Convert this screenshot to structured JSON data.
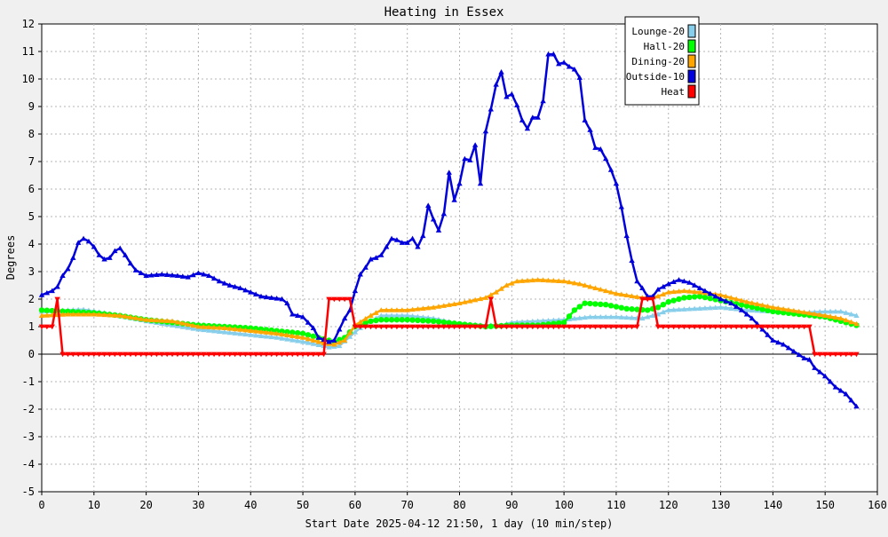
{
  "chart_data": {
    "type": "line",
    "title": "Heating in Essex",
    "xlabel": "Start Date 2025-04-12 21:50, 1 day (10 min/step)",
    "ylabel": "Degrees",
    "xlim": [
      0,
      160
    ],
    "ylim": [
      -5,
      12
    ],
    "x_ticks": [
      0,
      10,
      20,
      30,
      40,
      50,
      60,
      70,
      80,
      90,
      100,
      110,
      120,
      130,
      140,
      150,
      160
    ],
    "y_ticks": [
      -5,
      -4,
      -3,
      -2,
      -1,
      0,
      1,
      2,
      3,
      4,
      5,
      6,
      7,
      8,
      9,
      10,
      11,
      12
    ],
    "grid": true,
    "legend_position": "top-right",
    "background_color": "#ffffff",
    "frame_color": "#f0f0f0",
    "series": [
      {
        "name": "Lounge-20",
        "color": "#87ceeb",
        "marker": "triangle-up",
        "points": [
          [
            0,
            1.55
          ],
          [
            5,
            1.6
          ],
          [
            8,
            1.62
          ],
          [
            12,
            1.5
          ],
          [
            16,
            1.35
          ],
          [
            20,
            1.2
          ],
          [
            25,
            1.05
          ],
          [
            30,
            0.9
          ],
          [
            35,
            0.8
          ],
          [
            40,
            0.7
          ],
          [
            45,
            0.6
          ],
          [
            50,
            0.45
          ],
          [
            54,
            0.3
          ],
          [
            55,
            0.25
          ],
          [
            57,
            0.3
          ],
          [
            60,
            0.8
          ],
          [
            62,
            1.1
          ],
          [
            65,
            1.4
          ],
          [
            70,
            1.4
          ],
          [
            75,
            1.3
          ],
          [
            80,
            1.1
          ],
          [
            85,
            1.05
          ],
          [
            88,
            1.05
          ],
          [
            90,
            1.15
          ],
          [
            95,
            1.2
          ],
          [
            100,
            1.25
          ],
          [
            105,
            1.35
          ],
          [
            110,
            1.35
          ],
          [
            115,
            1.3
          ],
          [
            118,
            1.45
          ],
          [
            120,
            1.6
          ],
          [
            125,
            1.65
          ],
          [
            130,
            1.7
          ],
          [
            135,
            1.6
          ],
          [
            140,
            1.55
          ],
          [
            145,
            1.5
          ],
          [
            150,
            1.55
          ],
          [
            153,
            1.55
          ],
          [
            156,
            1.4
          ]
        ]
      },
      {
        "name": "Hall-20",
        "color": "#00ff00",
        "marker": "circle",
        "points": [
          [
            0,
            1.6
          ],
          [
            5,
            1.55
          ],
          [
            10,
            1.5
          ],
          [
            15,
            1.4
          ],
          [
            20,
            1.25
          ],
          [
            25,
            1.15
          ],
          [
            30,
            1.05
          ],
          [
            35,
            1.0
          ],
          [
            40,
            0.95
          ],
          [
            45,
            0.85
          ],
          [
            50,
            0.75
          ],
          [
            54,
            0.55
          ],
          [
            56,
            0.45
          ],
          [
            58,
            0.6
          ],
          [
            60,
            1.0
          ],
          [
            63,
            1.2
          ],
          [
            65,
            1.25
          ],
          [
            70,
            1.25
          ],
          [
            75,
            1.2
          ],
          [
            80,
            1.1
          ],
          [
            85,
            1.0
          ],
          [
            90,
            1.05
          ],
          [
            95,
            1.05
          ],
          [
            100,
            1.15
          ],
          [
            102,
            1.6
          ],
          [
            104,
            1.85
          ],
          [
            108,
            1.8
          ],
          [
            112,
            1.65
          ],
          [
            116,
            1.6
          ],
          [
            118,
            1.7
          ],
          [
            120,
            1.9
          ],
          [
            123,
            2.05
          ],
          [
            126,
            2.1
          ],
          [
            130,
            1.95
          ],
          [
            135,
            1.75
          ],
          [
            140,
            1.55
          ],
          [
            145,
            1.45
          ],
          [
            150,
            1.35
          ],
          [
            153,
            1.2
          ],
          [
            156,
            1.05
          ]
        ]
      },
      {
        "name": "Dining-20",
        "color": "#ffa500",
        "marker": "triangle-up",
        "points": [
          [
            0,
            1.4
          ],
          [
            5,
            1.45
          ],
          [
            10,
            1.45
          ],
          [
            15,
            1.4
          ],
          [
            20,
            1.25
          ],
          [
            25,
            1.2
          ],
          [
            30,
            1.0
          ],
          [
            35,
            0.95
          ],
          [
            40,
            0.85
          ],
          [
            45,
            0.75
          ],
          [
            50,
            0.6
          ],
          [
            54,
            0.4
          ],
          [
            56,
            0.35
          ],
          [
            58,
            0.5
          ],
          [
            60,
            1.05
          ],
          [
            63,
            1.4
          ],
          [
            65,
            1.6
          ],
          [
            70,
            1.6
          ],
          [
            75,
            1.7
          ],
          [
            80,
            1.85
          ],
          [
            85,
            2.05
          ],
          [
            87,
            2.25
          ],
          [
            89,
            2.5
          ],
          [
            91,
            2.65
          ],
          [
            95,
            2.7
          ],
          [
            100,
            2.65
          ],
          [
            103,
            2.55
          ],
          [
            105,
            2.45
          ],
          [
            110,
            2.2
          ],
          [
            115,
            2.05
          ],
          [
            118,
            2.1
          ],
          [
            120,
            2.25
          ],
          [
            123,
            2.3
          ],
          [
            126,
            2.25
          ],
          [
            130,
            2.15
          ],
          [
            135,
            1.9
          ],
          [
            140,
            1.7
          ],
          [
            145,
            1.55
          ],
          [
            150,
            1.4
          ],
          [
            153,
            1.3
          ],
          [
            156,
            1.1
          ]
        ]
      },
      {
        "name": "Outside-10",
        "color": "#0000dd",
        "marker": "triangle-up",
        "points": [
          [
            0,
            2.15
          ],
          [
            2,
            2.3
          ],
          [
            3,
            2.45
          ],
          [
            4,
            2.85
          ],
          [
            5,
            3.1
          ],
          [
            6,
            3.5
          ],
          [
            7,
            4.05
          ],
          [
            8,
            4.2
          ],
          [
            9,
            4.1
          ],
          [
            10,
            3.9
          ],
          [
            11,
            3.6
          ],
          [
            12,
            3.45
          ],
          [
            13,
            3.5
          ],
          [
            14,
            3.75
          ],
          [
            15,
            3.85
          ],
          [
            16,
            3.6
          ],
          [
            17,
            3.3
          ],
          [
            18,
            3.05
          ],
          [
            20,
            2.85
          ],
          [
            23,
            2.9
          ],
          [
            26,
            2.85
          ],
          [
            28,
            2.8
          ],
          [
            30,
            2.95
          ],
          [
            32,
            2.85
          ],
          [
            34,
            2.65
          ],
          [
            36,
            2.5
          ],
          [
            38,
            2.4
          ],
          [
            40,
            2.25
          ],
          [
            42,
            2.1
          ],
          [
            44,
            2.05
          ],
          [
            46,
            2.0
          ],
          [
            47,
            1.85
          ],
          [
            48,
            1.45
          ],
          [
            50,
            1.35
          ],
          [
            52,
            0.95
          ],
          [
            53,
            0.6
          ],
          [
            55,
            0.45
          ],
          [
            56,
            0.5
          ],
          [
            58,
            1.3
          ],
          [
            59,
            1.6
          ],
          [
            60,
            2.3
          ],
          [
            61,
            2.9
          ],
          [
            62,
            3.15
          ],
          [
            63,
            3.45
          ],
          [
            64,
            3.5
          ],
          [
            65,
            3.6
          ],
          [
            66,
            3.9
          ],
          [
            67,
            4.2
          ],
          [
            68,
            4.15
          ],
          [
            69,
            4.05
          ],
          [
            70,
            4.05
          ],
          [
            71,
            4.2
          ],
          [
            72,
            3.9
          ],
          [
            73,
            4.3
          ],
          [
            74,
            5.4
          ],
          [
            75,
            4.9
          ],
          [
            76,
            4.5
          ],
          [
            77,
            5.1
          ],
          [
            78,
            6.6
          ],
          [
            79,
            5.6
          ],
          [
            80,
            6.2
          ],
          [
            81,
            7.1
          ],
          [
            82,
            7.05
          ],
          [
            83,
            7.6
          ],
          [
            84,
            6.2
          ],
          [
            85,
            8.1
          ],
          [
            86,
            8.9
          ],
          [
            87,
            9.8
          ],
          [
            88,
            10.25
          ],
          [
            89,
            9.35
          ],
          [
            90,
            9.45
          ],
          [
            91,
            9.05
          ],
          [
            92,
            8.5
          ],
          [
            93,
            8.2
          ],
          [
            94,
            8.6
          ],
          [
            95,
            8.6
          ],
          [
            96,
            9.2
          ],
          [
            97,
            10.9
          ],
          [
            98,
            10.9
          ],
          [
            99,
            10.55
          ],
          [
            100,
            10.6
          ],
          [
            101,
            10.45
          ],
          [
            102,
            10.35
          ],
          [
            103,
            10.05
          ],
          [
            104,
            8.5
          ],
          [
            105,
            8.15
          ],
          [
            106,
            7.5
          ],
          [
            107,
            7.45
          ],
          [
            108,
            7.1
          ],
          [
            109,
            6.7
          ],
          [
            110,
            6.2
          ],
          [
            111,
            5.35
          ],
          [
            112,
            4.3
          ],
          [
            113,
            3.4
          ],
          [
            114,
            2.65
          ],
          [
            115,
            2.4
          ],
          [
            116,
            2.1
          ],
          [
            117,
            2.1
          ],
          [
            118,
            2.35
          ],
          [
            120,
            2.55
          ],
          [
            122,
            2.7
          ],
          [
            124,
            2.6
          ],
          [
            126,
            2.4
          ],
          [
            128,
            2.2
          ],
          [
            130,
            2.0
          ],
          [
            132,
            1.85
          ],
          [
            134,
            1.6
          ],
          [
            136,
            1.3
          ],
          [
            138,
            0.9
          ],
          [
            140,
            0.5
          ],
          [
            142,
            0.35
          ],
          [
            144,
            0.1
          ],
          [
            146,
            -0.15
          ],
          [
            147,
            -0.2
          ],
          [
            148,
            -0.5
          ],
          [
            150,
            -0.8
          ],
          [
            152,
            -1.2
          ],
          [
            154,
            -1.45
          ],
          [
            156,
            -1.9
          ]
        ]
      },
      {
        "name": "Heat",
        "color": "#ff0000",
        "marker": "triangle-down",
        "points": [
          [
            0,
            1
          ],
          [
            2,
            1
          ],
          [
            3,
            2
          ],
          [
            4,
            0
          ],
          [
            50,
            0
          ],
          [
            54,
            0
          ],
          [
            55,
            2
          ],
          [
            59,
            2
          ],
          [
            60,
            1
          ],
          [
            70,
            1
          ],
          [
            80,
            1
          ],
          [
            85,
            1
          ],
          [
            86,
            2
          ],
          [
            87,
            1
          ],
          [
            100,
            1
          ],
          [
            110,
            1
          ],
          [
            114,
            1
          ],
          [
            115,
            2
          ],
          [
            117,
            2
          ],
          [
            118,
            1
          ],
          [
            130,
            1
          ],
          [
            140,
            1
          ],
          [
            147,
            1
          ],
          [
            148,
            0
          ],
          [
            156,
            0
          ]
        ]
      }
    ]
  }
}
